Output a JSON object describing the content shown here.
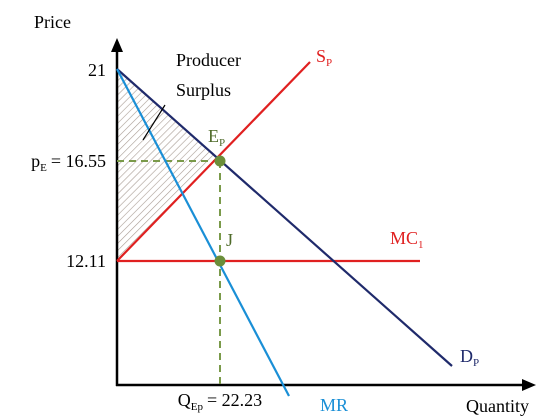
{
  "axes": {
    "y_label": "Price",
    "x_label": "Quantity"
  },
  "price_levels": {
    "top": "21",
    "pE": {
      "main": "p",
      "sub": "E",
      "value": "= 16.55"
    },
    "mc": "12.11"
  },
  "quantity_level": {
    "main": "Q",
    "sub": "Ep",
    "value": "= 22.23"
  },
  "region": {
    "line1": "Producer",
    "line2": "Surplus"
  },
  "curves": {
    "supply": {
      "main": "S",
      "sub": "P"
    },
    "demand": {
      "main": "D",
      "sub": "P"
    },
    "mr": "MR",
    "mc": {
      "main": "MC",
      "sub": "1"
    }
  },
  "points": {
    "equilibrium": {
      "main": "E",
      "sub": "P"
    },
    "j": "J"
  }
}
